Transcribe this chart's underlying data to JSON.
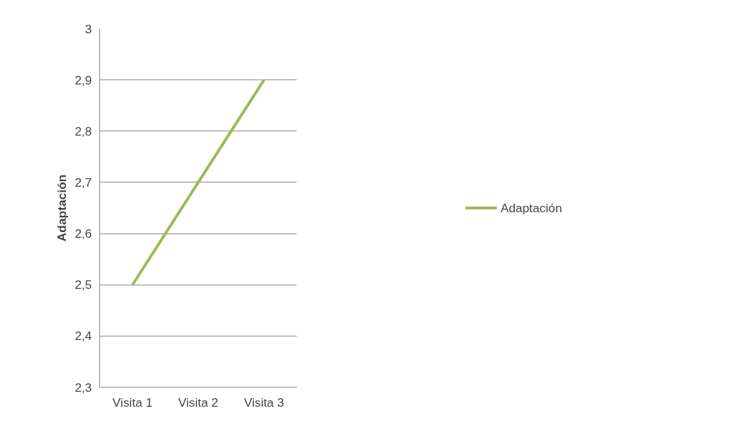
{
  "chart_data": {
    "type": "line",
    "ylabel": "Adaptación",
    "categories": [
      "Visita 1",
      "Visita 2",
      "Visita 3"
    ],
    "series": [
      {
        "name": "Adaptación",
        "color": "#9bbb59",
        "values": [
          2.5,
          2.7,
          2.9
        ]
      }
    ],
    "ylim": [
      2.3,
      3
    ],
    "yticks": [
      {
        "value": 2.3,
        "label": "2,3"
      },
      {
        "value": 2.4,
        "label": "2,4"
      },
      {
        "value": 2.5,
        "label": "2,5"
      },
      {
        "value": 2.6,
        "label": "2,6"
      },
      {
        "value": 2.7,
        "label": "2,7"
      },
      {
        "value": 2.8,
        "label": "2,8"
      },
      {
        "value": 2.9,
        "label": "2,9"
      },
      3
    ],
    "grid": "y",
    "legend": "right",
    "marker": "none",
    "line_style": "solid"
  }
}
